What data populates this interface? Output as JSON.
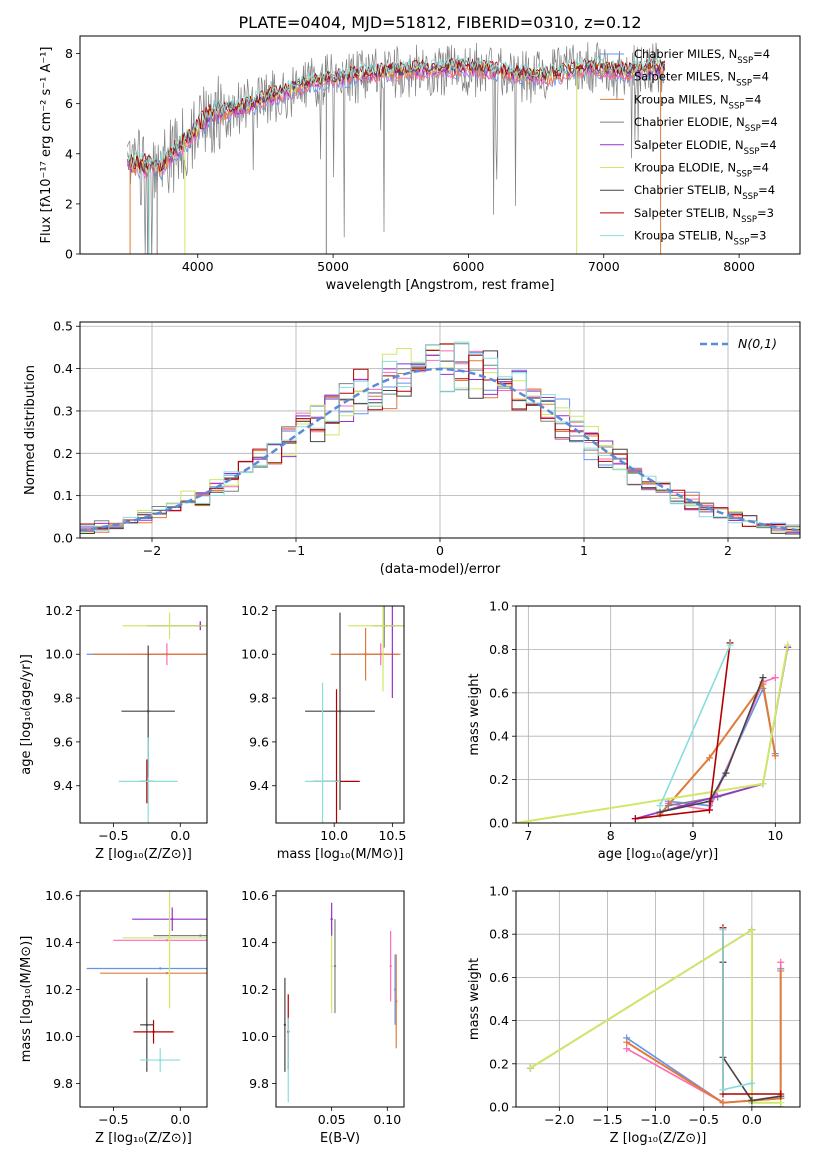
{
  "figure_title": "PLATE=0404, MJD=51812, FIBERID=0310, z=0.12",
  "colors": {
    "c_MILES": "#6495ed",
    "s_MILES": "#ff69b4",
    "k_MILES": "#e07b39",
    "c_ELODIE": "#808080",
    "s_ELODIE": "#9932cc",
    "k_ELODIE": "#cfe868",
    "c_STELIB": "#444444",
    "s_STELIB": "#b20000",
    "k_STELIB": "#88dddd",
    "normal": "#5b8ad8"
  },
  "chart_data": [
    {
      "id": "spectrum",
      "type": "line",
      "xlabel": "wavelength [Angstrom, rest frame]",
      "ylabel": "Flux [fλ10⁻¹⁷ erg cm⁻² s⁻¹ A⁻¹]",
      "xlim": [
        3130,
        8450
      ],
      "ylim": [
        0,
        8.7
      ],
      "xticks": [
        4000,
        5000,
        6000,
        7000,
        8000
      ],
      "yticks": [
        0,
        2,
        4,
        6,
        8
      ],
      "legend_position": "top-right",
      "continuum": {
        "x": [
          3500,
          3650,
          3700,
          3900,
          4100,
          4300,
          4500,
          4800,
          5000,
          5300,
          5500,
          5800,
          6000,
          6300,
          6600,
          6900,
          7100,
          7400,
          7800,
          8100
        ],
        "y": [
          3.6,
          3.5,
          3.3,
          4.5,
          5.6,
          5.8,
          6.2,
          6.8,
          7.0,
          7.2,
          7.3,
          7.4,
          7.45,
          7.2,
          7.1,
          7.5,
          7.3,
          7.4,
          7.2,
          7.1
        ]
      },
      "series": [
        {
          "name": "Chabrier MILES, N_SSP=4",
          "color_key": "c_MILES"
        },
        {
          "name": "Salpeter MILES, N_SSP=4",
          "color_key": "s_MILES"
        },
        {
          "name": "Kroupa MILES, N_SSP=4",
          "color_key": "k_MILES"
        },
        {
          "name": "Chabrier ELODIE, N_SSP=4",
          "color_key": "c_ELODIE"
        },
        {
          "name": "Salpeter ELODIE, N_SSP=4",
          "color_key": "s_ELODIE"
        },
        {
          "name": "Kroupa ELODIE, N_SSP=4",
          "color_key": "k_ELODIE"
        },
        {
          "name": "Chabrier STELIB, N_SSP=4",
          "color_key": "c_STELIB"
        },
        {
          "name": "Salpeter STELIB, N_SSP=3",
          "color_key": "s_STELIB"
        },
        {
          "name": "Kroupa STELIB, N_SSP=3",
          "color_key": "k_STELIB"
        }
      ]
    },
    {
      "id": "residuals",
      "type": "histogram",
      "xlabel": "(data-model)/error",
      "ylabel": "Normed distribution",
      "xlim": [
        -2.5,
        2.5
      ],
      "ylim": [
        0,
        0.51
      ],
      "xticks": [
        -2,
        -1,
        0,
        1,
        2
      ],
      "yticks": [
        0.0,
        0.1,
        0.2,
        0.3,
        0.4,
        0.5
      ],
      "legend": "N(0,1)",
      "legend_position": "top-right",
      "grid": true,
      "bin_width": 0.1
    },
    {
      "id": "age_vs_Z",
      "type": "scatter",
      "xlabel": "Z [log₁₀(Z/Z⊙)]",
      "ylabel": "age  [log₁₀(age/yr)]",
      "xlim": [
        -0.75,
        0.2
      ],
      "ylim": [
        9.23,
        10.22
      ],
      "xticks": [
        -0.5,
        0.0
      ],
      "yticks": [
        9.4,
        9.6,
        9.8,
        10.0,
        10.2
      ],
      "points": [
        {
          "c": "c_MILES",
          "x": -0.1,
          "y": 10.0,
          "xerr": 0.6,
          "yerr": 0.0
        },
        {
          "c": "s_MILES",
          "x": -0.1,
          "y": 10.0,
          "xerr": 0.25,
          "yerr": 0.05
        },
        {
          "c": "k_MILES",
          "x": -0.1,
          "y": 10.0,
          "xerr": 0.55,
          "yerr": 0.0
        },
        {
          "c": "c_ELODIE",
          "x": 0.15,
          "y": 10.13,
          "xerr": 0.02,
          "yerr": 0.02
        },
        {
          "c": "s_ELODIE",
          "x": 0.15,
          "y": 10.13,
          "xerr": 0.4,
          "yerr": 0.02
        },
        {
          "c": "k_ELODIE",
          "x": -0.08,
          "y": 10.13,
          "xerr": 0.35,
          "yerr": 0.06
        },
        {
          "c": "c_STELIB",
          "x": -0.24,
          "y": 9.74,
          "xerr": 0.2,
          "yerr": 0.3
        },
        {
          "c": "s_STELIB",
          "x": -0.25,
          "y": 9.42,
          "xerr": 0.05,
          "yerr": 0.1
        },
        {
          "c": "k_STELIB",
          "x": -0.24,
          "y": 9.42,
          "xerr": 0.22,
          "yerr": 0.2
        }
      ]
    },
    {
      "id": "age_vs_mass",
      "type": "scatter",
      "xlabel": "mass [log₁₀(M/M⊙)]",
      "ylabel": "",
      "xlim": [
        9.5,
        10.6
      ],
      "ylim": [
        9.23,
        10.22
      ],
      "xticks": [
        10.0,
        10.5
      ],
      "yticks": [
        9.4,
        9.6,
        9.8,
        10.0,
        10.2
      ],
      "points": [
        {
          "c": "c_MILES",
          "x": 10.27,
          "y": 10.0,
          "xerr": 0.18,
          "yerr": 0.0
        },
        {
          "c": "s_MILES",
          "x": 10.4,
          "y": 10.0,
          "xerr": 0.15,
          "yerr": 0.05
        },
        {
          "c": "k_MILES",
          "x": 10.27,
          "y": 10.0,
          "xerr": 0.3,
          "yerr": 0.12
        },
        {
          "c": "c_ELODIE",
          "x": 10.43,
          "y": 10.13,
          "xerr": 0.1,
          "yerr": 0.1
        },
        {
          "c": "s_ELODIE",
          "x": 10.5,
          "y": 10.13,
          "xerr": 0.1,
          "yerr": 0.33
        },
        {
          "c": "k_ELODIE",
          "x": 10.42,
          "y": 10.13,
          "xerr": 0.3,
          "yerr": 0.3
        },
        {
          "c": "c_STELIB",
          "x": 10.05,
          "y": 9.74,
          "xerr": 0.3,
          "yerr": 0.45
        },
        {
          "c": "s_STELIB",
          "x": 10.02,
          "y": 9.42,
          "xerr": 0.2,
          "yerr": 0.42
        },
        {
          "c": "k_STELIB",
          "x": 9.9,
          "y": 9.42,
          "xerr": 0.15,
          "yerr": 0.45
        }
      ]
    },
    {
      "id": "weight_vs_age",
      "type": "line",
      "xlabel": "age  [log₁₀(age/yr)]",
      "ylabel": "mass weight",
      "xlim": [
        6.85,
        10.3
      ],
      "ylim": [
        0,
        1.0
      ],
      "xticks": [
        7,
        8,
        9,
        10
      ],
      "yticks": [
        0.0,
        0.2,
        0.4,
        0.6,
        0.8,
        1.0
      ],
      "grid": true,
      "series": [
        {
          "c": "c_MILES",
          "x": [
            8.7,
            9.2,
            9.85,
            10.0
          ],
          "y": [
            0.1,
            0.08,
            0.62,
            0.32
          ]
        },
        {
          "c": "s_MILES",
          "x": [
            8.7,
            9.2,
            9.85,
            10.0
          ],
          "y": [
            0.09,
            0.06,
            0.65,
            0.67
          ]
        },
        {
          "c": "k_MILES",
          "x": [
            8.6,
            9.2,
            9.85,
            10.0
          ],
          "y": [
            0.04,
            0.3,
            0.64,
            0.31
          ]
        },
        {
          "c": "c_ELODIE",
          "x": [
            8.7,
            9.3,
            9.85,
            10.15
          ],
          "y": [
            0.08,
            0.12,
            0.18,
            0.81
          ]
        },
        {
          "c": "s_ELODIE",
          "x": [
            8.3,
            9.85,
            10.15
          ],
          "y": [
            0.02,
            0.18,
            0.81
          ]
        },
        {
          "c": "k_ELODIE",
          "x": [
            6.85,
            9.85,
            10.15
          ],
          "y": [
            0.0,
            0.18,
            0.82
          ]
        },
        {
          "c": "c_STELIB",
          "x": [
            8.6,
            9.2,
            9.4,
            9.85
          ],
          "y": [
            0.05,
            0.1,
            0.23,
            0.67
          ]
        },
        {
          "c": "s_STELIB",
          "x": [
            8.3,
            9.2,
            9.45
          ],
          "y": [
            0.02,
            0.06,
            0.83
          ]
        },
        {
          "c": "k_STELIB",
          "x": [
            8.6,
            9.45
          ],
          "y": [
            0.08,
            0.82
          ]
        }
      ]
    },
    {
      "id": "mass_vs_Z",
      "type": "scatter",
      "xlabel": "Z [log₁₀(Z/Z⊙)]",
      "ylabel": "mass [log₁₀(M/M⊙)]",
      "xlim": [
        -0.75,
        0.2
      ],
      "ylim": [
        9.7,
        10.62
      ],
      "xticks": [
        -0.5,
        0.0
      ],
      "yticks": [
        9.8,
        10.0,
        10.2,
        10.4,
        10.6
      ],
      "points": [
        {
          "c": "c_MILES",
          "x": -0.15,
          "y": 10.29,
          "xerr": 0.55,
          "yerr": 0.0
        },
        {
          "c": "s_MILES",
          "x": -0.1,
          "y": 10.41,
          "xerr": 0.4,
          "yerr": 0.0
        },
        {
          "c": "k_MILES",
          "x": -0.1,
          "y": 10.27,
          "xerr": 0.5,
          "yerr": 0.0
        },
        {
          "c": "c_ELODIE",
          "x": 0.15,
          "y": 10.43,
          "xerr": 0.35,
          "yerr": 0.0
        },
        {
          "c": "s_ELODIE",
          "x": -0.06,
          "y": 10.5,
          "xerr": 0.3,
          "yerr": 0.05
        },
        {
          "c": "k_ELODIE",
          "x": -0.08,
          "y": 10.42,
          "xerr": 0.35,
          "yerr": 0.3
        },
        {
          "c": "c_STELIB",
          "x": -0.25,
          "y": 10.05,
          "xerr": 0.05,
          "yerr": 0.2
        },
        {
          "c": "s_STELIB",
          "x": -0.2,
          "y": 10.02,
          "xerr": 0.15,
          "yerr": 0.05
        },
        {
          "c": "k_STELIB",
          "x": -0.15,
          "y": 9.9,
          "xerr": 0.15,
          "yerr": 0.05
        }
      ]
    },
    {
      "id": "mass_vs_ebv",
      "type": "scatter",
      "xlabel": "E(B-V)",
      "ylabel": "",
      "xlim": [
        0.0,
        0.115
      ],
      "ylim": [
        9.7,
        10.62
      ],
      "xticks": [
        0.05,
        0.1
      ],
      "yticks": [
        9.8,
        10.0,
        10.2,
        10.4,
        10.6
      ],
      "points": [
        {
          "c": "c_STELIB",
          "x": 0.008,
          "y": 10.05,
          "xerr": 0.0,
          "yerr": 0.2
        },
        {
          "c": "s_STELIB",
          "x": 0.011,
          "y": 10.02,
          "xerr": 0.0,
          "yerr": 0.16
        },
        {
          "c": "k_STELIB",
          "x": 0.011,
          "y": 9.9,
          "xerr": 0.0,
          "yerr": 0.18
        },
        {
          "c": "k_ELODIE",
          "x": 0.05,
          "y": 10.3,
          "xerr": 0.0,
          "yerr": 0.2
        },
        {
          "c": "s_ELODIE",
          "x": 0.05,
          "y": 10.5,
          "xerr": 0.0,
          "yerr": 0.07
        },
        {
          "c": "c_ELODIE",
          "x": 0.053,
          "y": 10.3,
          "xerr": 0.0,
          "yerr": 0.2
        },
        {
          "c": "s_MILES",
          "x": 0.103,
          "y": 10.3,
          "xerr": 0.0,
          "yerr": 0.15
        },
        {
          "c": "c_MILES",
          "x": 0.107,
          "y": 10.2,
          "xerr": 0.0,
          "yerr": 0.15
        },
        {
          "c": "k_MILES",
          "x": 0.108,
          "y": 10.15,
          "xerr": 0.0,
          "yerr": 0.2
        }
      ]
    },
    {
      "id": "weight_vs_Z",
      "type": "line",
      "xlabel": "Z [log₁₀(Z/Z⊙)]",
      "ylabel": "mass weight",
      "xlim": [
        -2.45,
        0.5
      ],
      "ylim": [
        0,
        1.0
      ],
      "xticks": [
        -2.0,
        -1.5,
        -1.0,
        -0.5,
        0.0
      ],
      "yticks": [
        0.0,
        0.2,
        0.4,
        0.6,
        0.8,
        1.0
      ],
      "grid": true,
      "series": [
        {
          "c": "c_MILES",
          "x": [
            -1.3,
            -0.3,
            0.3,
            0.3
          ],
          "y": [
            0.32,
            0.02,
            0.04,
            0.64
          ]
        },
        {
          "c": "s_MILES",
          "x": [
            -1.3,
            -0.3,
            0.3,
            0.3
          ],
          "y": [
            0.27,
            0.02,
            0.04,
            0.67
          ]
        },
        {
          "c": "k_MILES",
          "x": [
            -1.3,
            -0.3,
            0.3,
            0.3
          ],
          "y": [
            0.3,
            0.02,
            0.04,
            0.63
          ]
        },
        {
          "c": "c_ELODIE",
          "x": [
            -2.3,
            0.0,
            0.0,
            0.3
          ],
          "y": [
            0.18,
            0.82,
            0.0,
            0.0
          ]
        },
        {
          "c": "s_ELODIE",
          "x": [
            -2.3,
            0.0,
            0.0
          ],
          "y": [
            0.18,
            0.82,
            0.02
          ]
        },
        {
          "c": "k_ELODIE",
          "x": [
            -2.3,
            0.0,
            0.0,
            0.3
          ],
          "y": [
            0.18,
            0.82,
            0.02,
            0.02
          ]
        },
        {
          "c": "c_STELIB",
          "x": [
            -0.3,
            -0.3,
            0.0,
            0.3
          ],
          "y": [
            0.67,
            0.23,
            0.03,
            0.05
          ]
        },
        {
          "c": "s_STELIB",
          "x": [
            -0.3,
            -0.3,
            0.3
          ],
          "y": [
            0.83,
            0.06,
            0.06
          ]
        },
        {
          "c": "k_STELIB",
          "x": [
            -0.3,
            -0.3,
            0.0
          ],
          "y": [
            0.82,
            0.08,
            0.11
          ]
        }
      ]
    }
  ]
}
